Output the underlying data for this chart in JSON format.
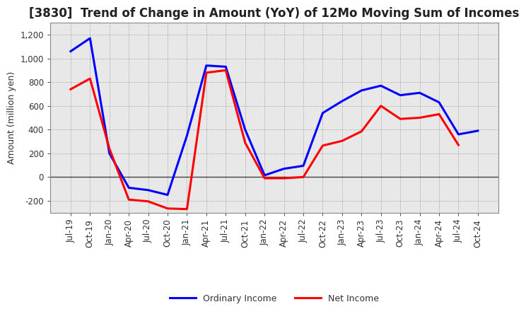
{
  "title": "[3830]  Trend of Change in Amount (YoY) of 12Mo Moving Sum of Incomes",
  "ylabel": "Amount (million yen)",
  "background_color": "#ffffff",
  "plot_bg_color": "#e8e8e8",
  "grid_color": "#999999",
  "x_labels": [
    "Jul-19",
    "Oct-19",
    "Jan-20",
    "Apr-20",
    "Jul-20",
    "Oct-20",
    "Jan-21",
    "Apr-21",
    "Jul-21",
    "Oct-21",
    "Jan-22",
    "Apr-22",
    "Jul-22",
    "Oct-22",
    "Jan-23",
    "Apr-23",
    "Jul-23",
    "Oct-23",
    "Jan-24",
    "Apr-24",
    "Jul-24",
    "Oct-24"
  ],
  "ordinary_income": [
    1060,
    1170,
    200,
    -90,
    -110,
    -150,
    350,
    940,
    930,
    400,
    15,
    70,
    95,
    540,
    640,
    730,
    770,
    690,
    710,
    630,
    360,
    390
  ],
  "net_income": [
    740,
    830,
    240,
    -190,
    -205,
    -265,
    -270,
    880,
    900,
    290,
    -10,
    -10,
    0,
    265,
    305,
    385,
    600,
    490,
    500,
    530,
    270,
    null
  ],
  "ordinary_color": "#0000ff",
  "net_color": "#ff0000",
  "ylim": [
    -300,
    1300
  ],
  "yticks": [
    -200,
    0,
    200,
    400,
    600,
    800,
    1000,
    1200
  ],
  "line_width": 2.2,
  "title_fontsize": 12,
  "axis_label_fontsize": 9,
  "tick_fontsize": 8.5,
  "legend_fontsize": 9
}
